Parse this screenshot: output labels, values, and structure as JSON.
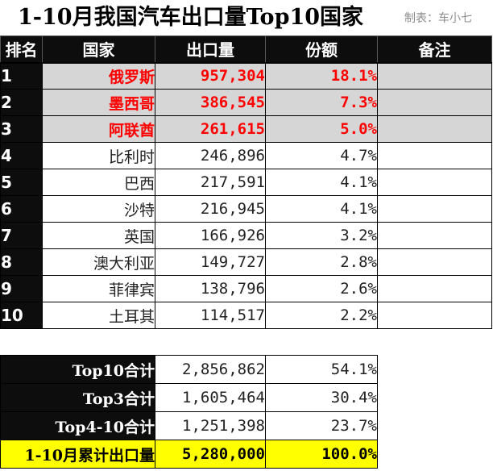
{
  "title": "1-10月我国汽车出口量Top10国家",
  "credit": "制表：车小七",
  "headers": [
    "排名",
    "国家",
    "出口量",
    "份额",
    "备注"
  ],
  "rows": [
    {
      "rank": "1",
      "country": "俄罗斯",
      "volume": "957,304",
      "share": "18.1%"
    },
    {
      "rank": "2",
      "country": "墨西哥",
      "volume": "386,545",
      "share": "7.3%"
    },
    {
      "rank": "3",
      "country": "阿联酋",
      "volume": "261,615",
      "share": "5.0%"
    },
    {
      "rank": "4",
      "country": "比利时",
      "volume": "246,896",
      "share": "4.7%"
    },
    {
      "rank": "5",
      "country": "巴西",
      "volume": "217,591",
      "share": "4.1%"
    },
    {
      "rank": "6",
      "country": "沙特",
      "volume": "216,945",
      "share": "4.1%"
    },
    {
      "rank": "7",
      "country": "英国",
      "volume": "166,926",
      "share": "3.2%"
    },
    {
      "rank": "8",
      "country": "澳大利亚",
      "volume": "149,727",
      "share": "2.8%"
    },
    {
      "rank": "9",
      "country": "菲律宾",
      "volume": "138,796",
      "share": "2.6%"
    },
    {
      "rank": "10",
      "country": "土耳其",
      "volume": "114,517",
      "share": "2.2%"
    }
  ],
  "summary": [
    {
      "label": "Top10合计",
      "volume": "2,856,862",
      "share": "54.1%"
    },
    {
      "label": "Top3合计",
      "volume": "1,605,464",
      "share": "30.4%"
    },
    {
      "label": "Top4-10合计",
      "volume": "1,251,398",
      "share": "23.7%"
    },
    {
      "label": "1-10月累计出口量",
      "volume": "5,280,000",
      "share": "100.0%"
    }
  ],
  "colors": {
    "highlight_text": "#ff0000",
    "highlight_row_bg": "#d6d6d6",
    "header_bg": "#0d0d0d",
    "total_bg": "#ffff00"
  }
}
